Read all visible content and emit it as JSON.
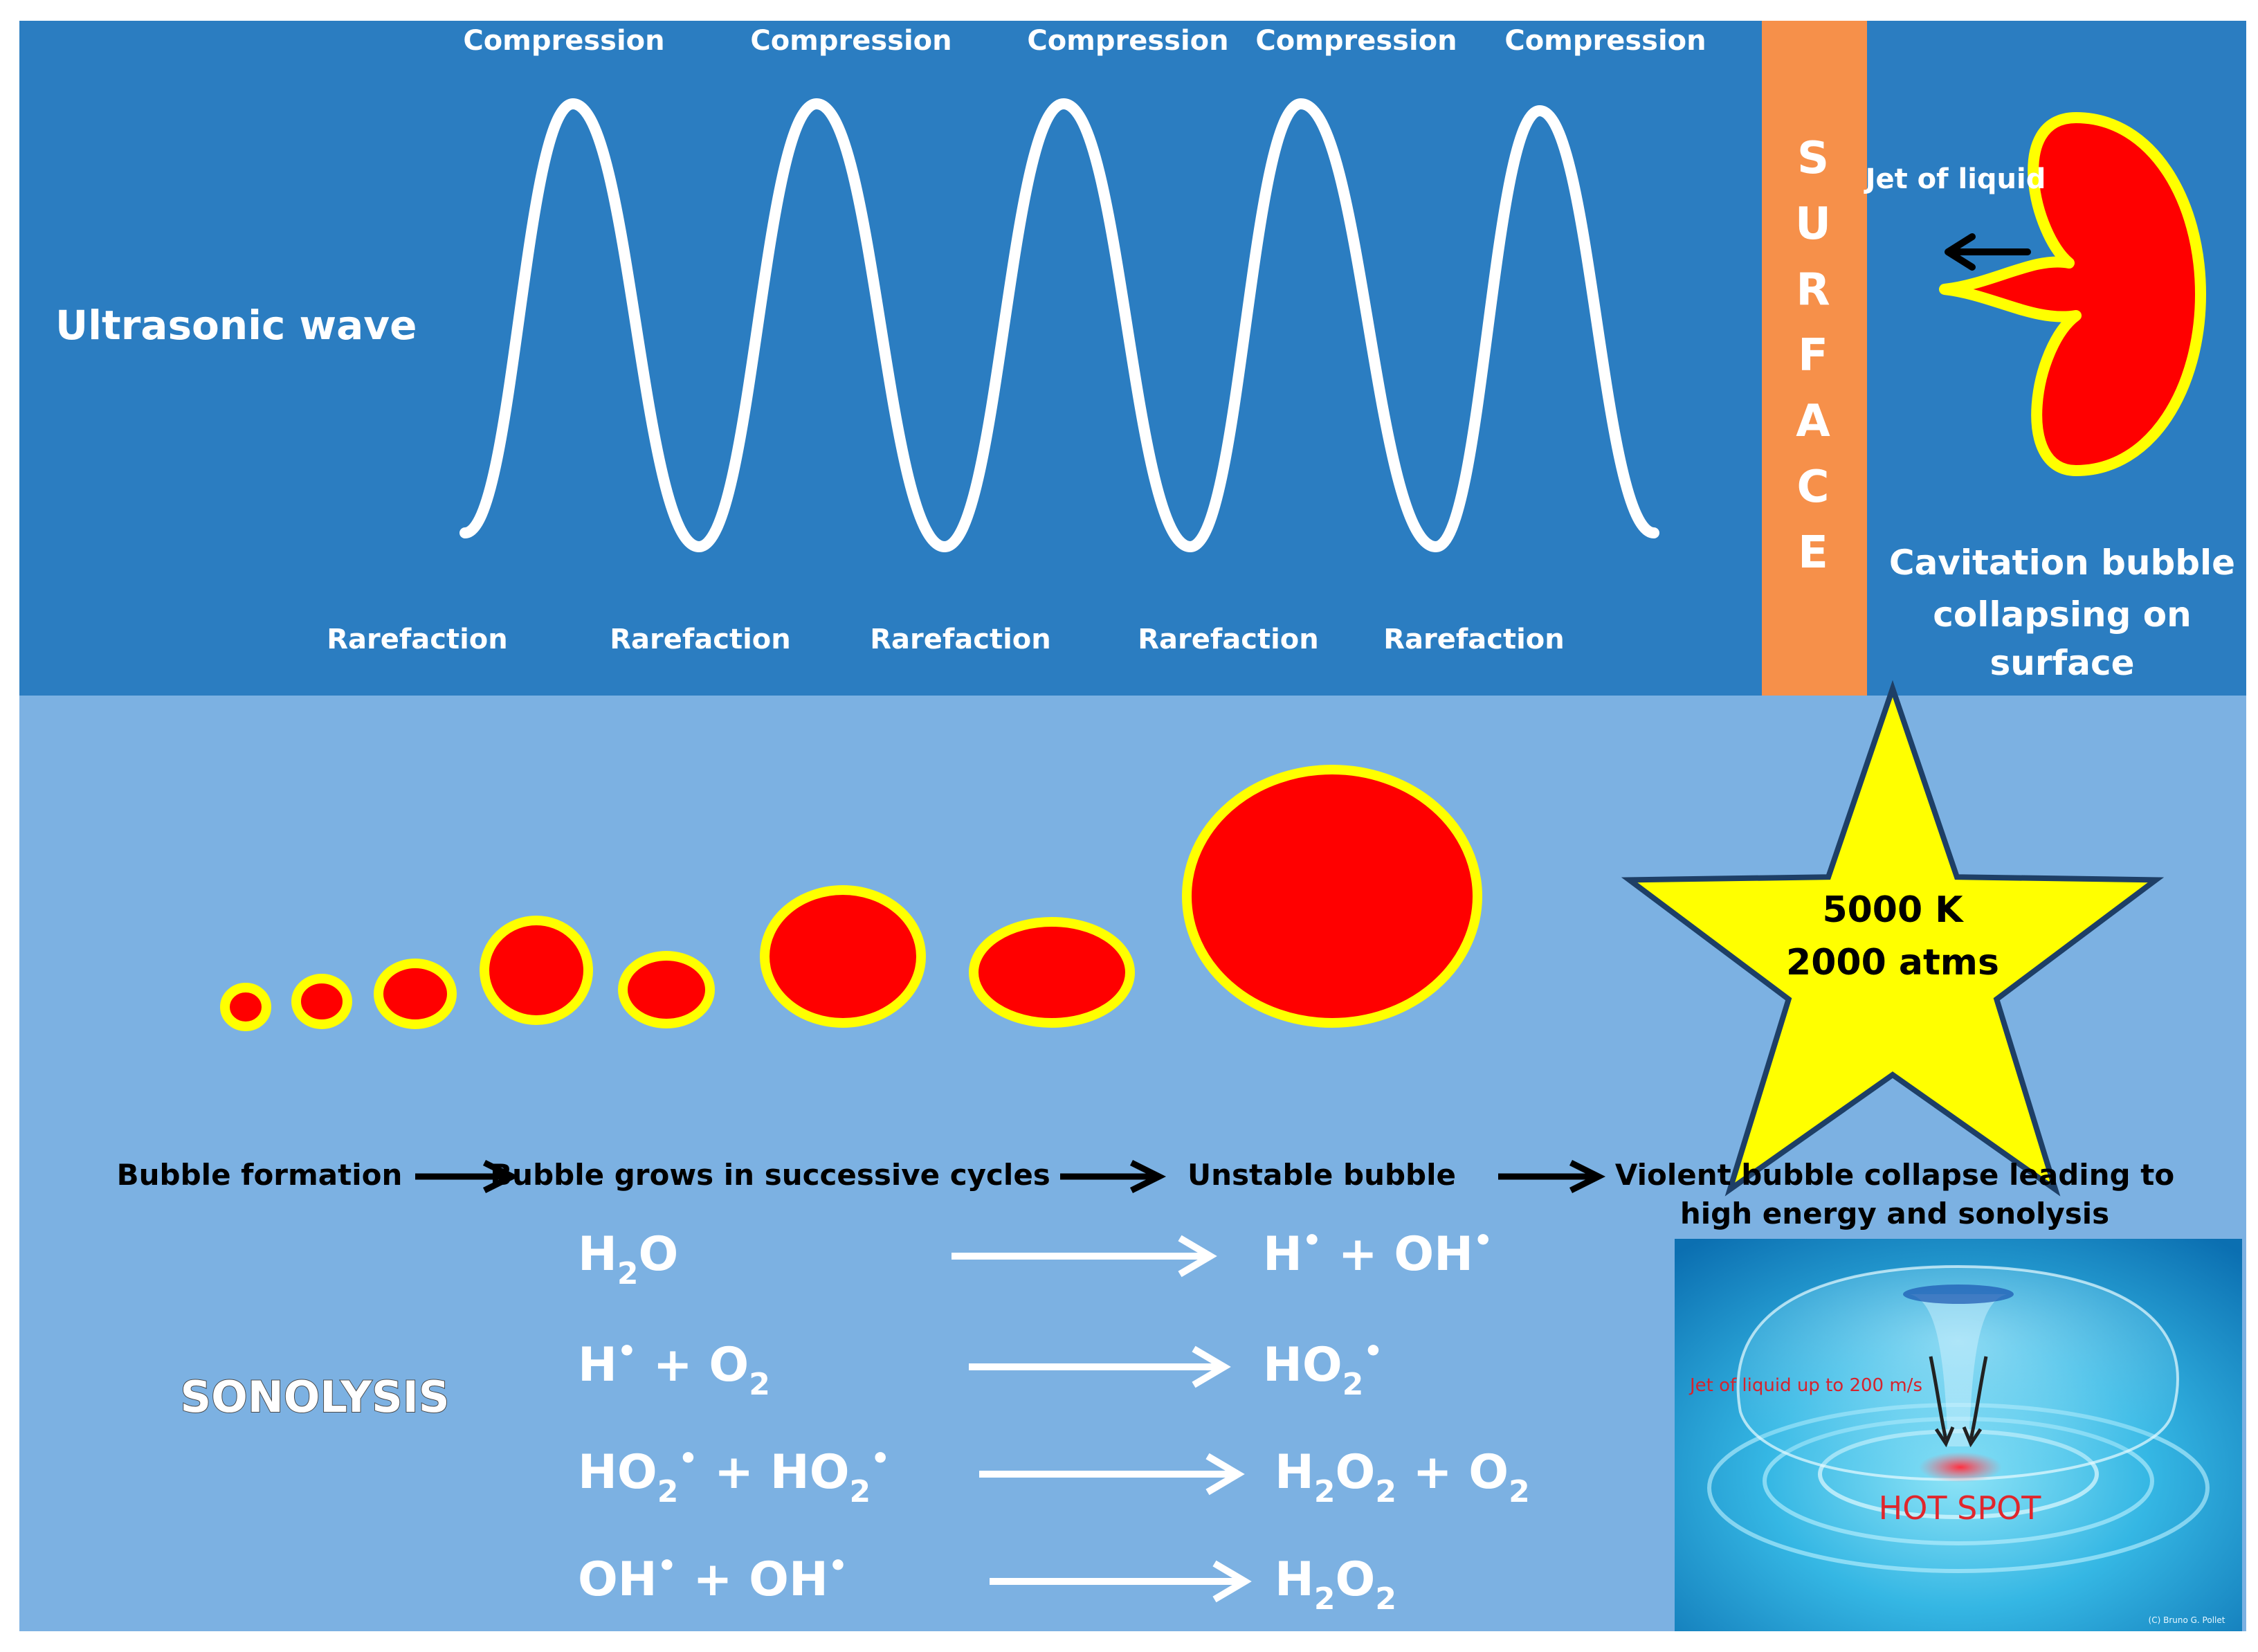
{
  "colors": {
    "top_panel": "#2b7dc1",
    "bottom_panel": "#7cb1e2",
    "surface_bar": "#f6904a",
    "bubble_fill": "#ff0000",
    "bubble_rim": "#ffff00",
    "star_fill": "#ffff00",
    "wave": "#ffffff",
    "inset_bg": "#1a9ed6",
    "hot_spot_text": "#e0262c"
  },
  "wave": {
    "title": "Ultrasonic wave",
    "compression_labels": [
      "Compression",
      "Compression",
      "Compression",
      "Compression",
      "Compression"
    ],
    "rarefaction_labels": [
      "Rarefaction",
      "Rarefaction",
      "Rarefaction",
      "Rarefaction",
      "Rarefaction"
    ]
  },
  "surface": {
    "letters": [
      "S",
      "U",
      "R",
      "F",
      "A",
      "C",
      "E"
    ]
  },
  "collapse": {
    "jet_label": "Jet of liquid",
    "caption_lines": [
      "Cavitation bubble",
      "collapsing on",
      "surface"
    ]
  },
  "star": {
    "line1": "5000 K",
    "line2": "2000 atms"
  },
  "stages": {
    "formation": "Bubble formation",
    "growth": "Bubble grows in successive cycles",
    "unstable": "Unstable bubble",
    "collapse_lines": [
      "Violent bubble collapse leading to",
      "high energy and sonolysis"
    ]
  },
  "sonolysis": {
    "title": "SONOLYSIS",
    "reactions": [
      {
        "reactants": [
          [
            "H",
            "n"
          ],
          [
            "2",
            "sub"
          ],
          [
            "O",
            "n"
          ]
        ],
        "products": [
          [
            "H",
            "n"
          ],
          [
            "•",
            "sup"
          ],
          [
            " + OH",
            "n"
          ],
          [
            "•",
            "sup"
          ]
        ]
      },
      {
        "reactants": [
          [
            "H",
            "n"
          ],
          [
            "•",
            "sup"
          ],
          [
            " + O",
            "n"
          ],
          [
            "2",
            "sub"
          ]
        ],
        "products": [
          [
            "HO",
            "n"
          ],
          [
            "2",
            "sub"
          ],
          [
            "•",
            "sup"
          ]
        ]
      },
      {
        "reactants": [
          [
            "HO",
            "n"
          ],
          [
            "2",
            "sub"
          ],
          [
            "•",
            "sup"
          ],
          [
            " + HO",
            "n"
          ],
          [
            "2",
            "sub"
          ],
          [
            "•",
            "sup"
          ]
        ],
        "products": [
          [
            "H",
            "n"
          ],
          [
            "2",
            "sub"
          ],
          [
            "O",
            "n"
          ],
          [
            "2",
            "sub"
          ],
          [
            " + O",
            "n"
          ],
          [
            "2",
            "sub"
          ]
        ]
      },
      {
        "reactants": [
          [
            "OH",
            "n"
          ],
          [
            "•",
            "sup"
          ],
          [
            "  +  OH",
            "n"
          ],
          [
            "•",
            "sup"
          ]
        ],
        "products": [
          [
            "H",
            "n"
          ],
          [
            "2",
            "sub"
          ],
          [
            "O",
            "n"
          ],
          [
            "2",
            "sub"
          ]
        ]
      }
    ]
  },
  "inset": {
    "jet_label": "Jet of liquid up to 200 m/s",
    "hot_spot": "HOT SPOT",
    "credit": "(C) Bruno G. Pollet"
  }
}
